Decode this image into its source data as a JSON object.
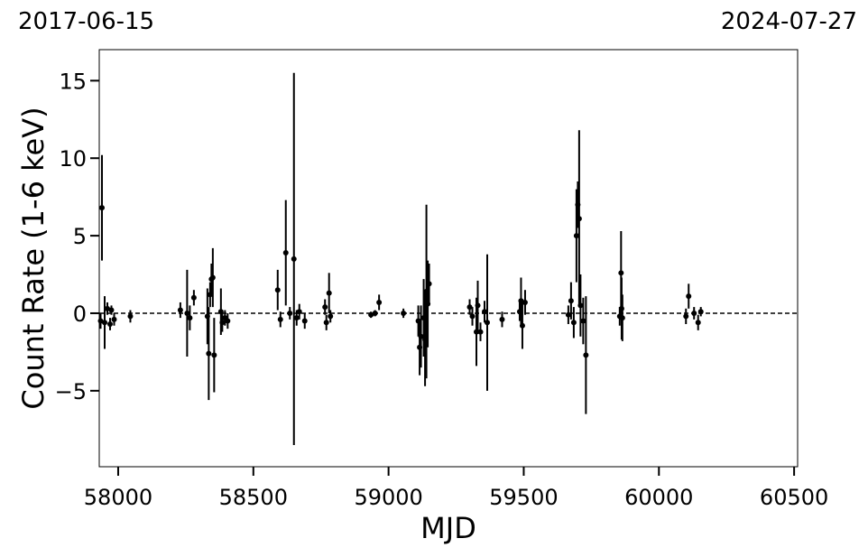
{
  "chart_data": {
    "type": "errorbar",
    "annotations": [
      "2017-06-15",
      "2024-07-27"
    ],
    "xlabel": "MJD",
    "ylabel": "Count Rate (1-6 keV)",
    "xlim": [
      57930,
      60513
    ],
    "ylim": [
      -9.9,
      17
    ],
    "xticks": [
      58000,
      58500,
      59000,
      59500,
      60000,
      60500
    ],
    "yticks": [
      {
        "value": -5,
        "label": "−5"
      },
      0,
      5,
      10,
      15
    ],
    "reference_line": 0,
    "series": [
      {
        "color": "#000000",
        "x": [
          57940,
          57935,
          57950,
          57960,
          57970,
          57975,
          57985,
          58045,
          58230,
          58255,
          58265,
          58280,
          58330,
          58335,
          58340,
          58345,
          58350,
          58355,
          58380,
          58385,
          58395,
          58405,
          58590,
          58600,
          58620,
          58635,
          58650,
          58660,
          58670,
          58690,
          58765,
          58770,
          58780,
          58785,
          58935,
          58950,
          58965,
          59055,
          59110,
          59115,
          59120,
          59130,
          59135,
          59140,
          59145,
          59150,
          59300,
          59310,
          59325,
          59330,
          59340,
          59355,
          59365,
          59420,
          59485,
          59490,
          59495,
          59505,
          59665,
          59675,
          59685,
          59695,
          59700,
          59705,
          59710,
          59720,
          59730,
          59855,
          59860,
          59862,
          59865,
          60100,
          60110,
          60130,
          60145,
          60155
        ],
        "values": [
          6.8,
          -0.5,
          -0.6,
          0.3,
          -0.7,
          0.2,
          -0.4,
          -0.2,
          0.2,
          0,
          -0.3,
          1.0,
          -0.2,
          -2.6,
          1.2,
          2.2,
          2.3,
          -2.7,
          0.1,
          -0.6,
          -0.3,
          -0.5,
          1.5,
          -0.4,
          3.9,
          0,
          3.5,
          -0.3,
          0.1,
          -0.5,
          0.4,
          -0.6,
          1.3,
          -0.2,
          -0.1,
          0,
          0.7,
          0,
          -0.5,
          -2.2,
          -1.5,
          -0.3,
          -1.7,
          1.4,
          0.6,
          1.9,
          0.4,
          -0.2,
          -1.2,
          0.5,
          -1.2,
          0.1,
          -0.6,
          -0.4,
          0.1,
          0.8,
          -0.8,
          0.7,
          -0.1,
          0.8,
          -0.6,
          5.0,
          7.0,
          6.1,
          0.5,
          -0.5,
          -2.7,
          -0.2,
          2.6,
          0.3,
          -0.3,
          -0.2,
          1.1,
          0.0,
          -0.6,
          0.1
        ],
        "errors": [
          3.4,
          0.5,
          1.7,
          0.4,
          0.4,
          0.3,
          0.4,
          0.4,
          0.5,
          2.8,
          0.8,
          0.5,
          1.8,
          3.0,
          0.8,
          1.0,
          1.9,
          2.4,
          1.5,
          0.6,
          0.5,
          0.5,
          1.3,
          0.5,
          3.4,
          0.4,
          12.0,
          0.5,
          0.5,
          0.5,
          0.5,
          0.5,
          1.3,
          0.4,
          0.2,
          0.2,
          0.5,
          0.3,
          1.0,
          1.8,
          2.0,
          2.5,
          3.0,
          5.6,
          2.8,
          1.3,
          0.5,
          0.6,
          2.2,
          1.6,
          0.6,
          0.7,
          4.4,
          0.5,
          0.6,
          1.5,
          1.5,
          0.8,
          0.6,
          1.2,
          1.0,
          3.0,
          1.5,
          5.7,
          2.0,
          1.5,
          3.8,
          0.6,
          2.7,
          2.0,
          1.5,
          0.5,
          0.8,
          0.4,
          0.5,
          0.3
        ]
      }
    ]
  }
}
